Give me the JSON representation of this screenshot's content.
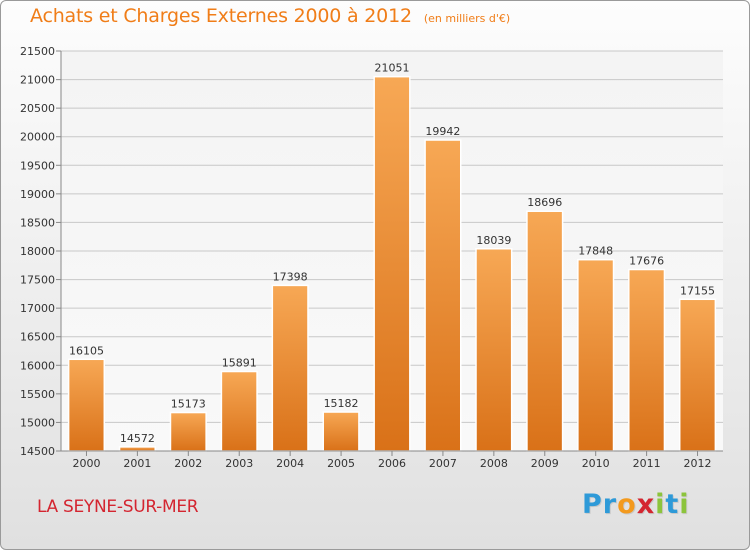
{
  "header": {
    "title": "Achats et Charges Externes 2000 à 2012",
    "subtitle": "(en milliers d'€)"
  },
  "footer": {
    "city": "LA SEYNE-SUR-MER",
    "logo_letters": [
      "P",
      "r",
      "o",
      "x",
      "i",
      "t",
      "i"
    ],
    "logo_colors": [
      "#2e9ad8",
      "#2e9ad8",
      "#f39a1e",
      "#d42530",
      "#8cc43c",
      "#2e9ad8",
      "#8cc43c"
    ]
  },
  "colors": {
    "bar_light": "#f7a855",
    "bar_dark": "#d97118",
    "title": "#f07d18",
    "city": "#d42530",
    "grid": "#c8c8c8"
  },
  "chart_data": {
    "type": "bar",
    "title": "Achats et Charges Externes 2000 à 2012",
    "subtitle": "(en milliers d'€)",
    "categories": [
      "2000",
      "2001",
      "2002",
      "2003",
      "2004",
      "2005",
      "2006",
      "2007",
      "2008",
      "2009",
      "2010",
      "2011",
      "2012"
    ],
    "values": [
      16105,
      14572,
      15173,
      15891,
      17398,
      15182,
      21051,
      19942,
      18039,
      18696,
      17848,
      17676,
      17155
    ],
    "ylim": [
      14500,
      21500
    ],
    "yticks": [
      14500,
      15000,
      15500,
      16000,
      16500,
      17000,
      17500,
      18000,
      18500,
      19000,
      19500,
      20000,
      20500,
      21000,
      21500
    ],
    "grid": true,
    "data_labels": true
  }
}
